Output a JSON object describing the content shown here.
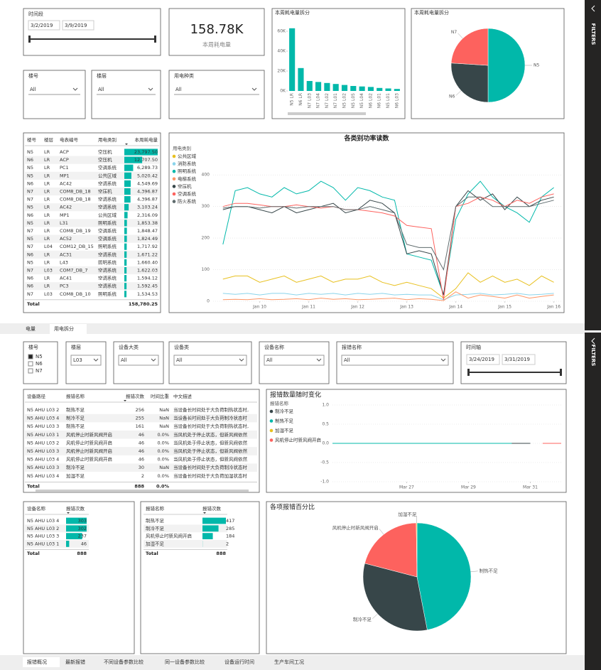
{
  "top": {
    "time_slicer": {
      "title": "时间段",
      "start": "3/2/2019",
      "end": "3/9/2019"
    },
    "card": {
      "value": "158.78K",
      "label": "本周耗电量"
    },
    "bar": {
      "type": "bar",
      "title": "本周耗电量拆分",
      "color": "#01b8aa",
      "categories": [
        "N5 LR",
        "N6 LR",
        "N7 L03",
        "N7 L04",
        "N7 L02",
        "N7 L01",
        "N5 L02",
        "N5 L05",
        "N5 L04",
        "N6 L02",
        "N6 L01",
        "N5 L01",
        "N6 L03"
      ],
      "values": [
        63000,
        23000,
        10000,
        9000,
        8000,
        7000,
        6000,
        5000,
        4500,
        4000,
        3000,
        2500,
        2000
      ],
      "ylim": [
        0,
        70000
      ],
      "yticks": [
        {
          "value": 0,
          "label": "0K"
        },
        {
          "value": 20000,
          "label": "20K"
        },
        {
          "value": 40000,
          "label": "40K"
        },
        {
          "value": 60000,
          "label": "60K"
        }
      ]
    },
    "pie": {
      "type": "pie",
      "title": "本周耗电量拆分",
      "categories": [
        "N5",
        "N6",
        "N7"
      ],
      "values": [
        50,
        26,
        24
      ],
      "colors": [
        "#01b8aa",
        "#374649",
        "#fd625e"
      ]
    },
    "slicers": [
      {
        "title": "楼号",
        "value": "All"
      },
      {
        "title": "楼层",
        "value": "All"
      },
      {
        "title": "用电种类",
        "value": "All"
      }
    ],
    "table": {
      "columns": [
        "楼号",
        "楼层",
        "电表编号",
        "用电类别",
        "本周耗电量"
      ],
      "rows": [
        [
          "N5",
          "LR",
          "ACP",
          "空压机",
          "23,797.50"
        ],
        [
          "N6",
          "LR",
          "ACP",
          "空压机",
          "12,707.50"
        ],
        [
          "N5",
          "LR",
          "PC1",
          "空调系统",
          "6,289.73"
        ],
        [
          "N5",
          "LR",
          "MP1",
          "公共区域",
          "5,020.42"
        ],
        [
          "N6",
          "LR",
          "AC42",
          "空调系统",
          "4,549.69"
        ],
        [
          "N7",
          "LR",
          "COM8_DB_18",
          "空压机",
          "4,396.87"
        ],
        [
          "N7",
          "LR",
          "COM8_DB_18",
          "空调系统",
          "4,396.87"
        ],
        [
          "N5",
          "LR",
          "AC42",
          "空调系统",
          "3,103.24"
        ],
        [
          "N6",
          "LR",
          "MP1",
          "公共区域",
          "2,316.09"
        ],
        [
          "N5",
          "LR",
          "L31",
          "照明系统",
          "1,853.38"
        ],
        [
          "N7",
          "LR",
          "COM8_DB_19",
          "空调系统",
          "1,848.47"
        ],
        [
          "N5",
          "LR",
          "AC52",
          "空调系统",
          "1,824.49"
        ],
        [
          "N7",
          "L04",
          "COM12_DB_15",
          "照明系统",
          "1,717.92"
        ],
        [
          "N6",
          "LR",
          "AC31",
          "空调系统",
          "1,671.22"
        ],
        [
          "N5",
          "LR",
          "L43",
          "照明系统",
          "1,660.40"
        ],
        [
          "N7",
          "L03",
          "COM7_DB_7",
          "空调系统",
          "1,622.03"
        ],
        [
          "N6",
          "LR",
          "AC41",
          "空调系统",
          "1,594.12"
        ],
        [
          "N6",
          "LR",
          "PC3",
          "空调系统",
          "1,592.45"
        ],
        [
          "N7",
          "L03",
          "COM8_DB_10",
          "照明系统",
          "1,534.53"
        ]
      ],
      "total": [
        "Total",
        "158,780.25"
      ]
    },
    "line": {
      "type": "line",
      "title": "各类别功率读数",
      "legend_title": "用电类别",
      "x": [
        9.25,
        9.5,
        9.75,
        10,
        10.25,
        10.5,
        10.75,
        11,
        11.25,
        11.5,
        11.75,
        12,
        12.25,
        12.5,
        12.75,
        13,
        13.25,
        13.5,
        13.75,
        14,
        14.25,
        14.5,
        14.75,
        15,
        15.25,
        15.5,
        15.75,
        16
      ],
      "xlim": [
        9.05,
        16.15
      ],
      "xticks": [
        {
          "value": 10,
          "label": "Jan 10"
        },
        {
          "value": 11,
          "label": "Jan 11"
        },
        {
          "value": 12,
          "label": "Jan 12"
        },
        {
          "value": 13,
          "label": "Jan 13"
        },
        {
          "value": 14,
          "label": "Jan 14"
        },
        {
          "value": 15,
          "label": "Jan 15"
        },
        {
          "value": 16,
          "label": "Jan 16"
        }
      ],
      "ylim": [
        0,
        450
      ],
      "yticks": [
        0,
        100,
        200,
        300,
        400
      ],
      "grid": true,
      "series": [
        {
          "name": "公共区域",
          "color": "#e8c01f",
          "values": [
            70,
            80,
            80,
            60,
            70,
            80,
            60,
            70,
            80,
            60,
            70,
            70,
            80,
            60,
            50,
            60,
            50,
            40,
            10,
            40,
            90,
            60,
            80,
            60,
            70,
            50,
            80,
            60
          ]
        },
        {
          "name": "消防系统",
          "color": "#8ad4eb",
          "values": [
            25,
            22,
            25,
            20,
            25,
            25,
            20,
            25,
            22,
            25,
            20,
            25,
            22,
            25,
            20,
            22,
            20,
            20,
            5,
            20,
            22,
            25,
            20,
            22,
            25,
            20,
            22,
            25
          ]
        },
        {
          "name": "照明系统",
          "color": "#01b8aa",
          "values": [
            180,
            350,
            360,
            340,
            330,
            360,
            340,
            350,
            380,
            360,
            320,
            360,
            350,
            330,
            320,
            150,
            140,
            130,
            20,
            260,
            340,
            380,
            330,
            300,
            280,
            250,
            330,
            360
          ]
        },
        {
          "name": "电梯系统",
          "color": "#fe9666",
          "values": [
            5,
            6,
            5,
            8,
            5,
            6,
            8,
            5,
            10,
            6,
            8,
            5,
            6,
            8,
            10,
            5,
            8,
            6,
            2,
            30,
            10,
            20,
            15,
            10,
            20,
            10,
            15,
            20
          ]
        },
        {
          "name": "空压机",
          "color": "#374649",
          "values": [
            290,
            300,
            300,
            290,
            280,
            300,
            280,
            290,
            300,
            310,
            280,
            290,
            320,
            310,
            280,
            150,
            160,
            150,
            20,
            300,
            350,
            320,
            340,
            290,
            330,
            300,
            320,
            330
          ]
        },
        {
          "name": "空调系统",
          "color": "#fd625e",
          "values": [
            300,
            310,
            310,
            305,
            300,
            300,
            305,
            300,
            295,
            300,
            290,
            290,
            285,
            280,
            270,
            240,
            235,
            230,
            5,
            300,
            310,
            330,
            320,
            300,
            320,
            310,
            330,
            340
          ]
        },
        {
          "name": "防火系统",
          "color": "#5f6b6d",
          "values": [
            295,
            300,
            300,
            295,
            300,
            300,
            295,
            300,
            300,
            300,
            290,
            290,
            300,
            290,
            280,
            180,
            170,
            170,
            100,
            300,
            330,
            330,
            300,
            300,
            300,
            300,
            310,
            320
          ]
        }
      ]
    },
    "tabs": [
      "电量",
      "用电拆分"
    ],
    "active_tab": 1,
    "filters": "FILTERS"
  },
  "bottom": {
    "slicers": [
      {
        "title": "楼号",
        "options": [
          "N5",
          "N6",
          "N7"
        ],
        "selected": [
          true,
          false,
          false
        ]
      },
      {
        "title": "楼层",
        "value": "L03"
      },
      {
        "title": "设备大类",
        "value": "All"
      },
      {
        "title": "设备类",
        "value": "All"
      },
      {
        "title": "设备名称",
        "value": "All"
      },
      {
        "title": "报错名称",
        "value": "All"
      },
      {
        "title": "时间轴",
        "start": "3/24/2019",
        "end": "3/31/2019"
      }
    ],
    "table": {
      "columns": [
        "设备路径",
        "报错名称",
        "报错次数",
        "时间比重",
        "中文描述"
      ],
      "rows": [
        [
          "N5 AHU L03 2",
          "制热不足",
          "256",
          "NaN",
          "当设备长时间处于大负荷制热状态时,"
        ],
        [
          "N5 AHU L03 4",
          "制冷不足",
          "255",
          "NaN",
          "当设备长时间处于大负荷制冷状态时"
        ],
        [
          "N5 AHU L03 3",
          "制热不足",
          "161",
          "NaN",
          "当设备长时间处于大负荷制热状态时,"
        ],
        [
          "N5 AHU L03 1",
          "风机停止时新风阀开启",
          "46",
          "0.0%",
          "当风机处于停止状态，但新风阀依然"
        ],
        [
          "N5 AHU L03 2",
          "风机停止时新风阀开启",
          "46",
          "0.0%",
          "当风机处于停止状态，但新风阀依然"
        ],
        [
          "N5 AHU L03 3",
          "风机停止时新风阀开启",
          "46",
          "0.0%",
          "当风机处于停止状态，但新风阀依然"
        ],
        [
          "N5 AHU L03 4",
          "风机停止时新风阀开启",
          "46",
          "0.0%",
          "当风机处于停止状态，但新风阀依然"
        ],
        [
          "N5 AHU L03 3",
          "制冷不足",
          "30",
          "NaN",
          "当设备长时间处于大负荷制冷状态时"
        ],
        [
          "N5 AHU L03 4",
          "加湿不足",
          "2",
          "0.0%",
          "当设备长时间处于大负荷加湿状态时"
        ]
      ],
      "total": [
        "Total",
        "888",
        "0.0%"
      ]
    },
    "line": {
      "type": "line",
      "title": "报错数量随时变化",
      "legend_title": "报错名称",
      "x": [
        24.6,
        26,
        28,
        30,
        30.4,
        31,
        31.4,
        32
      ],
      "xlim": [
        24.6,
        32
      ],
      "xticks": [
        {
          "value": 27,
          "label": "Mar 27"
        },
        {
          "value": 29,
          "label": "Mar 29"
        },
        {
          "value": 31,
          "label": "Mar 31"
        }
      ],
      "ylim": [
        -1,
        1
      ],
      "yticks": [
        {
          "value": -1,
          "label": "-1.0"
        },
        -0.5,
        {
          "value": 0,
          "label": "0.0"
        },
        0.5,
        {
          "value": 1,
          "label": "1.0"
        }
      ],
      "grid": true,
      "series": [
        {
          "name": "制冷不足",
          "color": "#374649",
          "values": [
            0,
            0,
            0,
            0,
            0,
            0,
            null,
            null
          ]
        },
        {
          "name": "制热不足",
          "color": "#01b8aa",
          "values": [
            0,
            0,
            0,
            0,
            0,
            null,
            null,
            null
          ]
        },
        {
          "name": "加湿不足",
          "color": "#e8c01f",
          "values": [
            null,
            null,
            null,
            null,
            null,
            null,
            null,
            null
          ]
        },
        {
          "name": "风机停止时新风阀开启",
          "color": "#fd625e",
          "values": [
            null,
            null,
            null,
            null,
            null,
            null,
            0,
            0
          ]
        }
      ]
    },
    "device_table": {
      "columns": [
        "设备名称",
        "报错次数"
      ],
      "rows": [
        [
          "N5 AHU L03 4",
          "303"
        ],
        [
          "N5 AHU L03 2",
          "302"
        ],
        [
          "N5 AHU L03 3",
          "237"
        ],
        [
          "N5 AHU L03 1",
          "46"
        ]
      ],
      "total": [
        "Total",
        "888"
      ]
    },
    "error_table": {
      "columns": [
        "报错名称",
        "报错次数"
      ],
      "rows": [
        [
          "制热不足",
          "417"
        ],
        [
          "制冷不足",
          "285"
        ],
        [
          "风机停止时新风阀开启",
          "184"
        ],
        [
          "加湿不足",
          "2"
        ]
      ],
      "total": [
        "Total",
        "888"
      ]
    },
    "pie": {
      "type": "pie",
      "title": "各项报错百分比",
      "categories": [
        "制热不足",
        "制冷不足",
        "风机停止时新风阀开启",
        "加湿不足"
      ],
      "values": [
        417,
        285,
        184,
        2
      ],
      "colors": [
        "#01b8aa",
        "#374649",
        "#fd625e",
        "#e8c01f"
      ]
    },
    "tabs": [
      "报错概况",
      "最新报错",
      "不同设备参数比较",
      "同一设备参数比较",
      "设备运行时间",
      "生产车间工况"
    ],
    "active_tab": 0,
    "filters": "FILTERS"
  }
}
